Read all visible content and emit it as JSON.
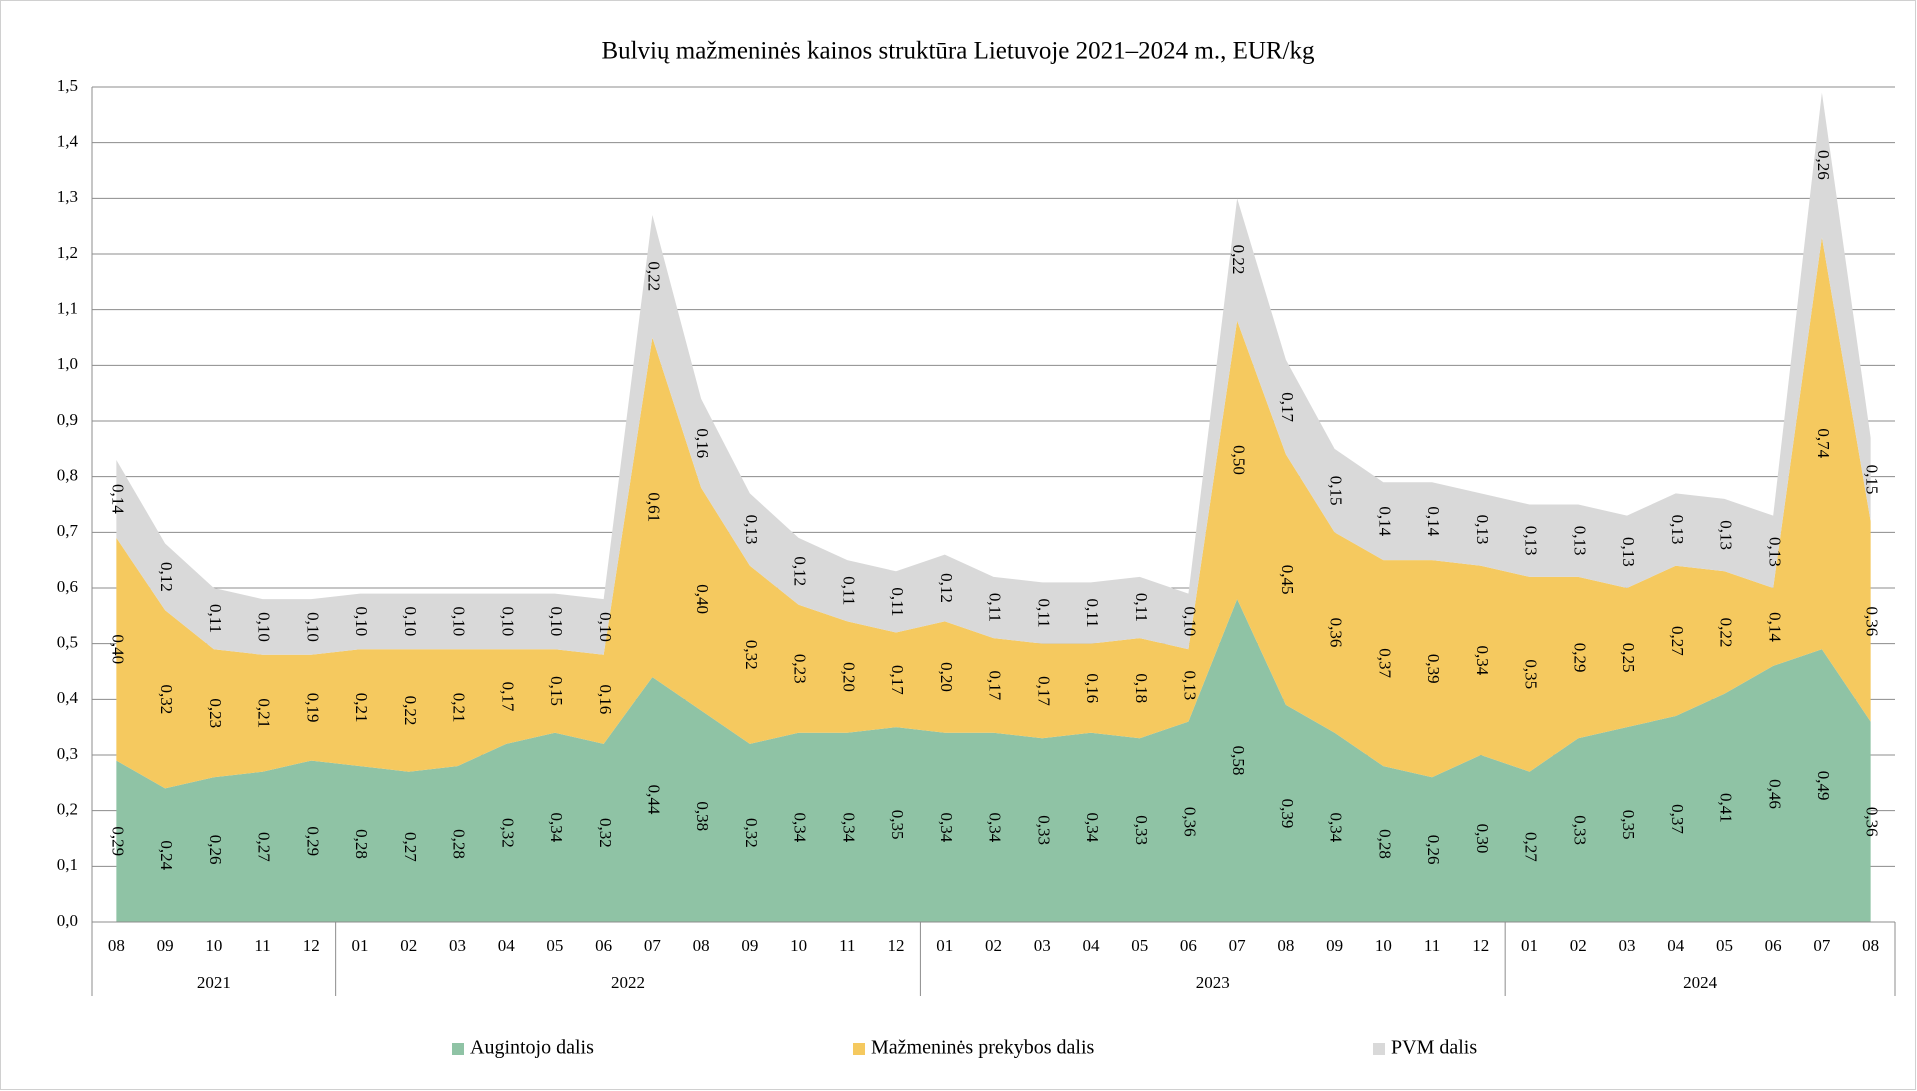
{
  "chart_data": {
    "type": "stacked_area",
    "title": "Bulvių mažmeninės kainos struktūra Lietuvoje 2021–2024 m., EUR/kg",
    "groups": [
      {
        "name": "2021",
        "months": [
          "08",
          "09",
          "10",
          "11",
          "12"
        ]
      },
      {
        "name": "2022",
        "months": [
          "01",
          "02",
          "03",
          "04",
          "05",
          "06",
          "07",
          "08",
          "09",
          "10",
          "11",
          "12"
        ]
      },
      {
        "name": "2023",
        "months": [
          "01",
          "02",
          "03",
          "04",
          "05",
          "06",
          "07",
          "08",
          "09",
          "10",
          "11",
          "12"
        ]
      },
      {
        "name": "2024",
        "months": [
          "01",
          "02",
          "03",
          "04",
          "05",
          "06",
          "07",
          "08"
        ]
      }
    ],
    "series": [
      {
        "name": "Augintojo dalis",
        "color": "#8fc3a5",
        "values": [
          0.29,
          0.24,
          0.26,
          0.27,
          0.29,
          0.28,
          0.27,
          0.28,
          0.32,
          0.34,
          0.32,
          0.44,
          0.38,
          0.32,
          0.34,
          0.34,
          0.35,
          0.34,
          0.34,
          0.33,
          0.34,
          0.33,
          0.36,
          0.58,
          0.39,
          0.34,
          0.28,
          0.26,
          0.3,
          0.27,
          0.33,
          0.35,
          0.37,
          0.41,
          0.46,
          0.49,
          0.36
        ],
        "value_labels": [
          "0,29",
          "0,24",
          "0,26",
          "0,27",
          "0,29",
          "0,28",
          "0,27",
          "0,28",
          "0,32",
          "0,34",
          "0,32",
          "0,44",
          "0,38",
          "0,32",
          "0,34",
          "0,34",
          "0,35",
          "0,34",
          "0,34",
          "0,33",
          "0,34",
          "0,33",
          "0,36",
          "0,58",
          "0,39",
          "0,34",
          "0,28",
          "0,26",
          "0,30",
          "0,27",
          "0,33",
          "0,35",
          "0,37",
          "0,41",
          "0,46",
          "0,49",
          "0,36"
        ]
      },
      {
        "name": "Mažmeninės prekybos dalis",
        "color": "#f5c95f",
        "values": [
          0.4,
          0.32,
          0.23,
          0.21,
          0.19,
          0.21,
          0.22,
          0.21,
          0.17,
          0.15,
          0.16,
          0.61,
          0.4,
          0.32,
          0.23,
          0.2,
          0.17,
          0.2,
          0.17,
          0.17,
          0.16,
          0.18,
          0.13,
          0.5,
          0.45,
          0.36,
          0.37,
          0.39,
          0.34,
          0.35,
          0.29,
          0.25,
          0.27,
          0.22,
          0.14,
          0.74,
          0.36
        ],
        "value_labels": [
          "0,40",
          "0,32",
          "0,23",
          "0,21",
          "0,19",
          "0,21",
          "0,22",
          "0,21",
          "0,17",
          "0,15",
          "0,16",
          "0,61",
          "0,40",
          "0,32",
          "0,23",
          "0,20",
          "0,17",
          "0,20",
          "0,17",
          "0,17",
          "0,16",
          "0,18",
          "0,13",
          "0,50",
          "0,45",
          "0,36",
          "0,37",
          "0,39",
          "0,34",
          "0,35",
          "0,29",
          "0,25",
          "0,27",
          "0,22",
          "0,14",
          "0,74",
          "0,36"
        ]
      },
      {
        "name": "PVM dalis",
        "color": "#d9d9d9",
        "values": [
          0.14,
          0.12,
          0.11,
          0.1,
          0.1,
          0.1,
          0.1,
          0.1,
          0.1,
          0.1,
          0.1,
          0.22,
          0.16,
          0.13,
          0.12,
          0.11,
          0.11,
          0.12,
          0.11,
          0.11,
          0.11,
          0.11,
          0.1,
          0.22,
          0.17,
          0.15,
          0.14,
          0.14,
          0.13,
          0.13,
          0.13,
          0.13,
          0.13,
          0.13,
          0.13,
          0.26,
          0.15
        ],
        "value_labels": [
          "0,14",
          "0,12",
          "0,11",
          "0,10",
          "0,10",
          "0,10",
          "0,10",
          "0,10",
          "0,10",
          "0,10",
          "0,10",
          "0,22",
          "0,16",
          "0,13",
          "0,12",
          "0,11",
          "0,11",
          "0,12",
          "0,11",
          "0,11",
          "0,11",
          "0,11",
          "0,10",
          "0,22",
          "0,17",
          "0,15",
          "0,14",
          "0,14",
          "0,13",
          "0,13",
          "0,13",
          "0,13",
          "0,13",
          "0,13",
          "0,13",
          "0,26",
          "0,15"
        ]
      }
    ],
    "ylim": [
      0,
      1.5
    ],
    "yticks": [
      {
        "value": 0,
        "label": "0,0"
      },
      {
        "value": 0.1,
        "label": "0,1"
      },
      {
        "value": 0.2,
        "label": "0,2"
      },
      {
        "value": 0.3,
        "label": "0,3"
      },
      {
        "value": 0.4,
        "label": "0,4"
      },
      {
        "value": 0.5,
        "label": "0,5"
      },
      {
        "value": 0.6,
        "label": "0,6"
      },
      {
        "value": 0.7,
        "label": "0,7"
      },
      {
        "value": 0.8,
        "label": "0,8"
      },
      {
        "value": 0.9,
        "label": "0,9"
      },
      {
        "value": 1.0,
        "label": "1,0"
      },
      {
        "value": 1.1,
        "label": "1,1"
      },
      {
        "value": 1.2,
        "label": "1,2"
      },
      {
        "value": 1.3,
        "label": "1,3"
      },
      {
        "value": 1.4,
        "label": "1,4"
      },
      {
        "value": 1.5,
        "label": "1,5"
      }
    ],
    "grid": true,
    "legend": "bottom"
  }
}
